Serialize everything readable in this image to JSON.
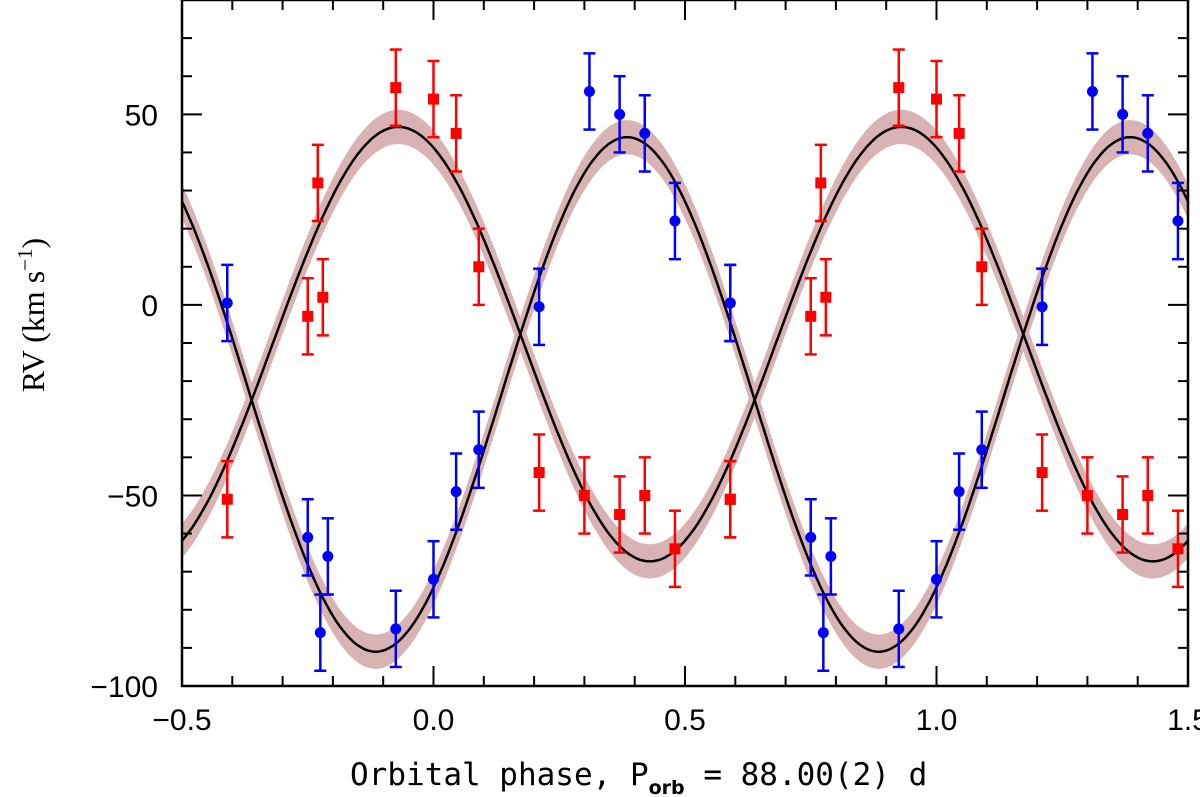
{
  "chart_data": {
    "type": "scatter",
    "title": "",
    "xlabel": {
      "main": "Orbital phase, P",
      "sub": "orb",
      "rest": " = 88.00(2) d"
    },
    "ylabel": {
      "main": "RV (km s",
      "sup": "−1",
      "close": ")"
    },
    "xlim": [
      -0.5,
      1.5
    ],
    "ylim": [
      -100,
      80
    ],
    "xticks": [
      -0.5,
      0.0,
      0.5,
      1.0,
      1.5
    ],
    "xtick_labels": [
      "−0.5",
      "0.0",
      "0.5",
      "1.0",
      "1.5"
    ],
    "yticks": [
      -100,
      -50,
      0,
      50
    ],
    "ytick_labels": [
      "−100",
      "−50",
      "0",
      "50"
    ],
    "grid": false,
    "models": [
      {
        "name": "red-orbit-fit",
        "gamma": -10.3,
        "K": 57.0,
        "phase_max": 0.93,
        "band_halfwidth": 4.5,
        "line_color": "#000000",
        "band_color": "#d9b3b3"
      },
      {
        "name": "blue-orbit-fit",
        "gamma": -23.5,
        "K": 67.5,
        "phase_max": 0.385,
        "band_halfwidth": 4.5,
        "line_color": "#000000",
        "band_color": "#d9b3b3"
      }
    ],
    "series": [
      {
        "name": "red",
        "marker": "square",
        "color": "#ff0000",
        "error": 10,
        "x": [
          -0.41,
          -0.25,
          -0.23,
          -0.22,
          -0.075,
          0.0,
          0.045,
          0.09,
          0.21,
          0.3,
          0.37,
          0.42,
          0.48,
          0.59
        ],
        "y": [
          -51,
          -3,
          32,
          2,
          57,
          54,
          45,
          10,
          -44,
          -50,
          -55,
          -50,
          -64,
          -51
        ]
      },
      {
        "name": "blue",
        "marker": "circle",
        "color": "#0000ff",
        "error": 10,
        "x": [
          -0.41,
          -0.25,
          -0.225,
          -0.21,
          -0.075,
          0.0,
          0.045,
          0.09,
          0.21,
          0.31,
          0.37,
          0.42,
          0.48,
          0.59
        ],
        "y": [
          0.5,
          -61,
          -86,
          -66,
          -85,
          -72,
          -49,
          -38,
          -0.5,
          56,
          50,
          45,
          22,
          0.5
        ]
      }
    ]
  }
}
